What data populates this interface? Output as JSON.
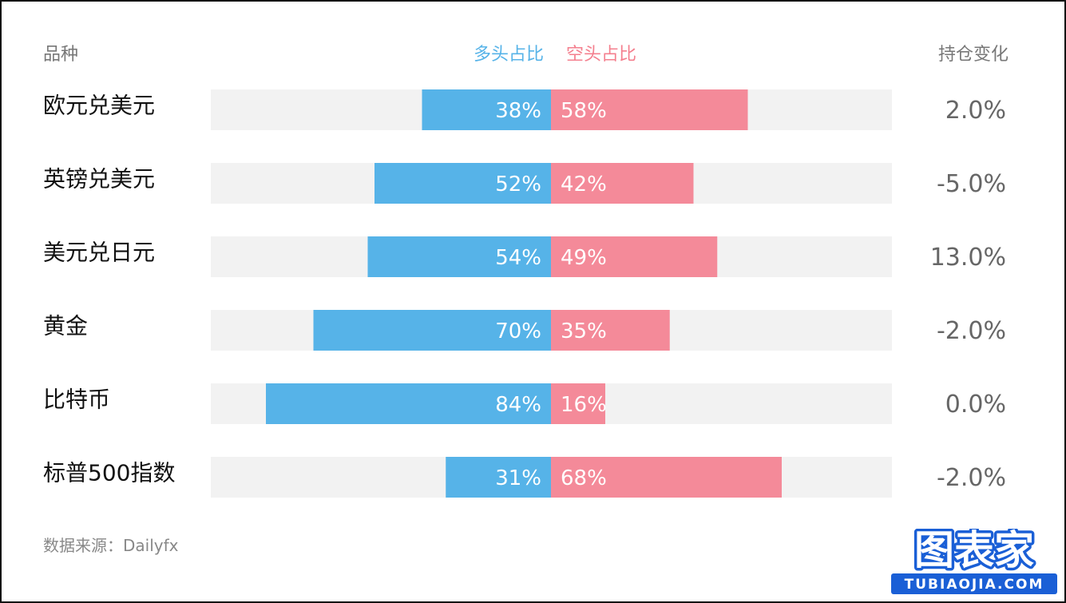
{
  "header": {
    "category": "品种",
    "long": "多头占比",
    "short": "空头占比",
    "change": "持仓变化"
  },
  "footer": {
    "source": "数据来源：Dailyfx"
  },
  "logo": {
    "name": "图表家",
    "url_text": "TUBIAOJIA.COM"
  },
  "colors": {
    "long": "#56b3e8",
    "short": "#f48a99",
    "track": "#f2f2f2",
    "text": "#111111",
    "change_text": "#666666"
  },
  "chart_data": {
    "type": "bar",
    "categories": [
      "欧元兑美元",
      "英镑兑美元",
      "美元兑日元",
      "黄金",
      "比特币",
      "标普500指数"
    ],
    "series": [
      {
        "name": "多头占比",
        "values": [
          38,
          52,
          54,
          70,
          84,
          31
        ]
      },
      {
        "name": "空头占比",
        "values": [
          58,
          42,
          49,
          35,
          16,
          68
        ]
      }
    ],
    "value_labels": {
      "long": [
        "38%",
        "52%",
        "54%",
        "70%",
        "84%",
        "31%"
      ],
      "short": [
        "58%",
        "42%",
        "49%",
        "35%",
        "16%",
        "68%"
      ]
    },
    "position_change": [
      "2.0%",
      "-5.0%",
      "13.0%",
      "-2.0%",
      "0.0%",
      "-2.0%"
    ],
    "max_value": 100,
    "grid": false
  }
}
